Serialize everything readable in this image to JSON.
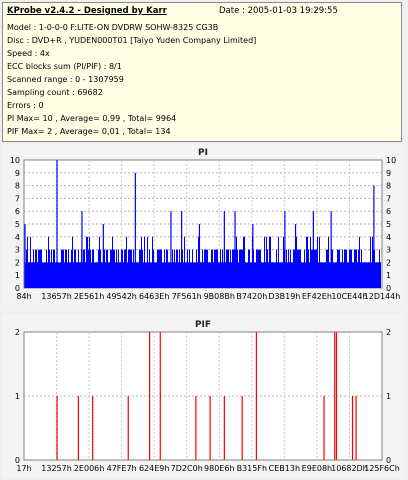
{
  "header": {
    "title": "KProbe v2.4.2 - Designed by Karr",
    "date": "Date : 2005-01-03 19:29:55",
    "lines": [
      "Model : 1-0-0-0 F:LITE-ON DVDRW SOHW-8325  CG3B",
      "Disc : DVD+R , YUDEN000T01 [Taiyo Yuden Company Limited]",
      "Speed : 4x",
      "ECC blocks sum (PI/PIF) : 8/1",
      "Scanned range : 0 - 1307959",
      "Sampling count : 69682",
      "Errors : 0",
      "PI Max= 10 , Average= 0,99 , Total= 9964",
      "PIF Max= 2 , Average= 0,01 , Total= 134"
    ]
  },
  "chart_data": [
    {
      "type": "bar",
      "title": "PI",
      "ylim": [
        0,
        10
      ],
      "yticks": [
        "0",
        "1",
        "2",
        "3",
        "4",
        "5",
        "6",
        "7",
        "8",
        "9",
        "10"
      ],
      "xticks": [
        "84h",
        "13657h",
        "2E561h",
        "49542h",
        "6463Eh",
        "7F561h",
        "9B08Bh",
        "B7420h",
        "D3B19h",
        "EF42Eh",
        "10CE44h",
        "12D144h"
      ],
      "series_color": "#0000ff",
      "grid": true,
      "baseline_level": 2,
      "band_level": 3,
      "spikes": [
        {
          "x": 0.0,
          "v": 5
        },
        {
          "x": 0.09,
          "v": 10
        },
        {
          "x": 0.16,
          "v": 6
        },
        {
          "x": 0.22,
          "v": 5
        },
        {
          "x": 0.31,
          "v": 9
        },
        {
          "x": 0.41,
          "v": 6
        },
        {
          "x": 0.44,
          "v": 6
        },
        {
          "x": 0.49,
          "v": 5
        },
        {
          "x": 0.56,
          "v": 6
        },
        {
          "x": 0.59,
          "v": 6
        },
        {
          "x": 0.64,
          "v": 5
        },
        {
          "x": 0.73,
          "v": 6
        },
        {
          "x": 0.76,
          "v": 5
        },
        {
          "x": 0.81,
          "v": 6
        },
        {
          "x": 0.86,
          "v": 6
        },
        {
          "x": 0.98,
          "v": 8
        }
      ]
    },
    {
      "type": "bar",
      "title": "PIF",
      "ylim": [
        0,
        2
      ],
      "yticks": [
        "0",
        "1",
        "2"
      ],
      "xticks": [
        "17h",
        "13257h",
        "2E006h",
        "47FE7h",
        "624E9h",
        "7D2C0h",
        "980E6h",
        "B315Fh",
        "CEB13h",
        "E9E08h",
        "10682Dh",
        "125F6Ch"
      ],
      "series_color": "#ff0000",
      "grid": true,
      "spikes": [
        {
          "x": 0.09,
          "v": 1
        },
        {
          "x": 0.15,
          "v": 1
        },
        {
          "x": 0.19,
          "v": 1
        },
        {
          "x": 0.29,
          "v": 1
        },
        {
          "x": 0.35,
          "v": 2
        },
        {
          "x": 0.38,
          "v": 2
        },
        {
          "x": 0.48,
          "v": 1
        },
        {
          "x": 0.52,
          "v": 1
        },
        {
          "x": 0.56,
          "v": 1
        },
        {
          "x": 0.61,
          "v": 1
        },
        {
          "x": 0.65,
          "v": 2
        },
        {
          "x": 0.84,
          "v": 1
        },
        {
          "x": 0.87,
          "v": 2
        },
        {
          "x": 0.875,
          "v": 2
        },
        {
          "x": 0.92,
          "v": 1
        },
        {
          "x": 0.93,
          "v": 1
        }
      ]
    }
  ]
}
